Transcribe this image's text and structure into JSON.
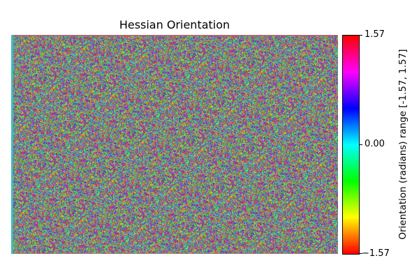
{
  "chart_data": {
    "type": "heatmap",
    "title": "Hessian Orientation",
    "colormap": "hsv",
    "colorbar": {
      "label": "Orientation (radians) range [-1.57, 1.57]",
      "range": [
        -1.57,
        1.57
      ],
      "ticks": [
        {
          "value": 1.57,
          "label": "1.57"
        },
        {
          "value": 0.0,
          "label": "0.00"
        },
        {
          "value": -1.57,
          "label": "−1.57"
        }
      ]
    },
    "axes_visible": false
  }
}
